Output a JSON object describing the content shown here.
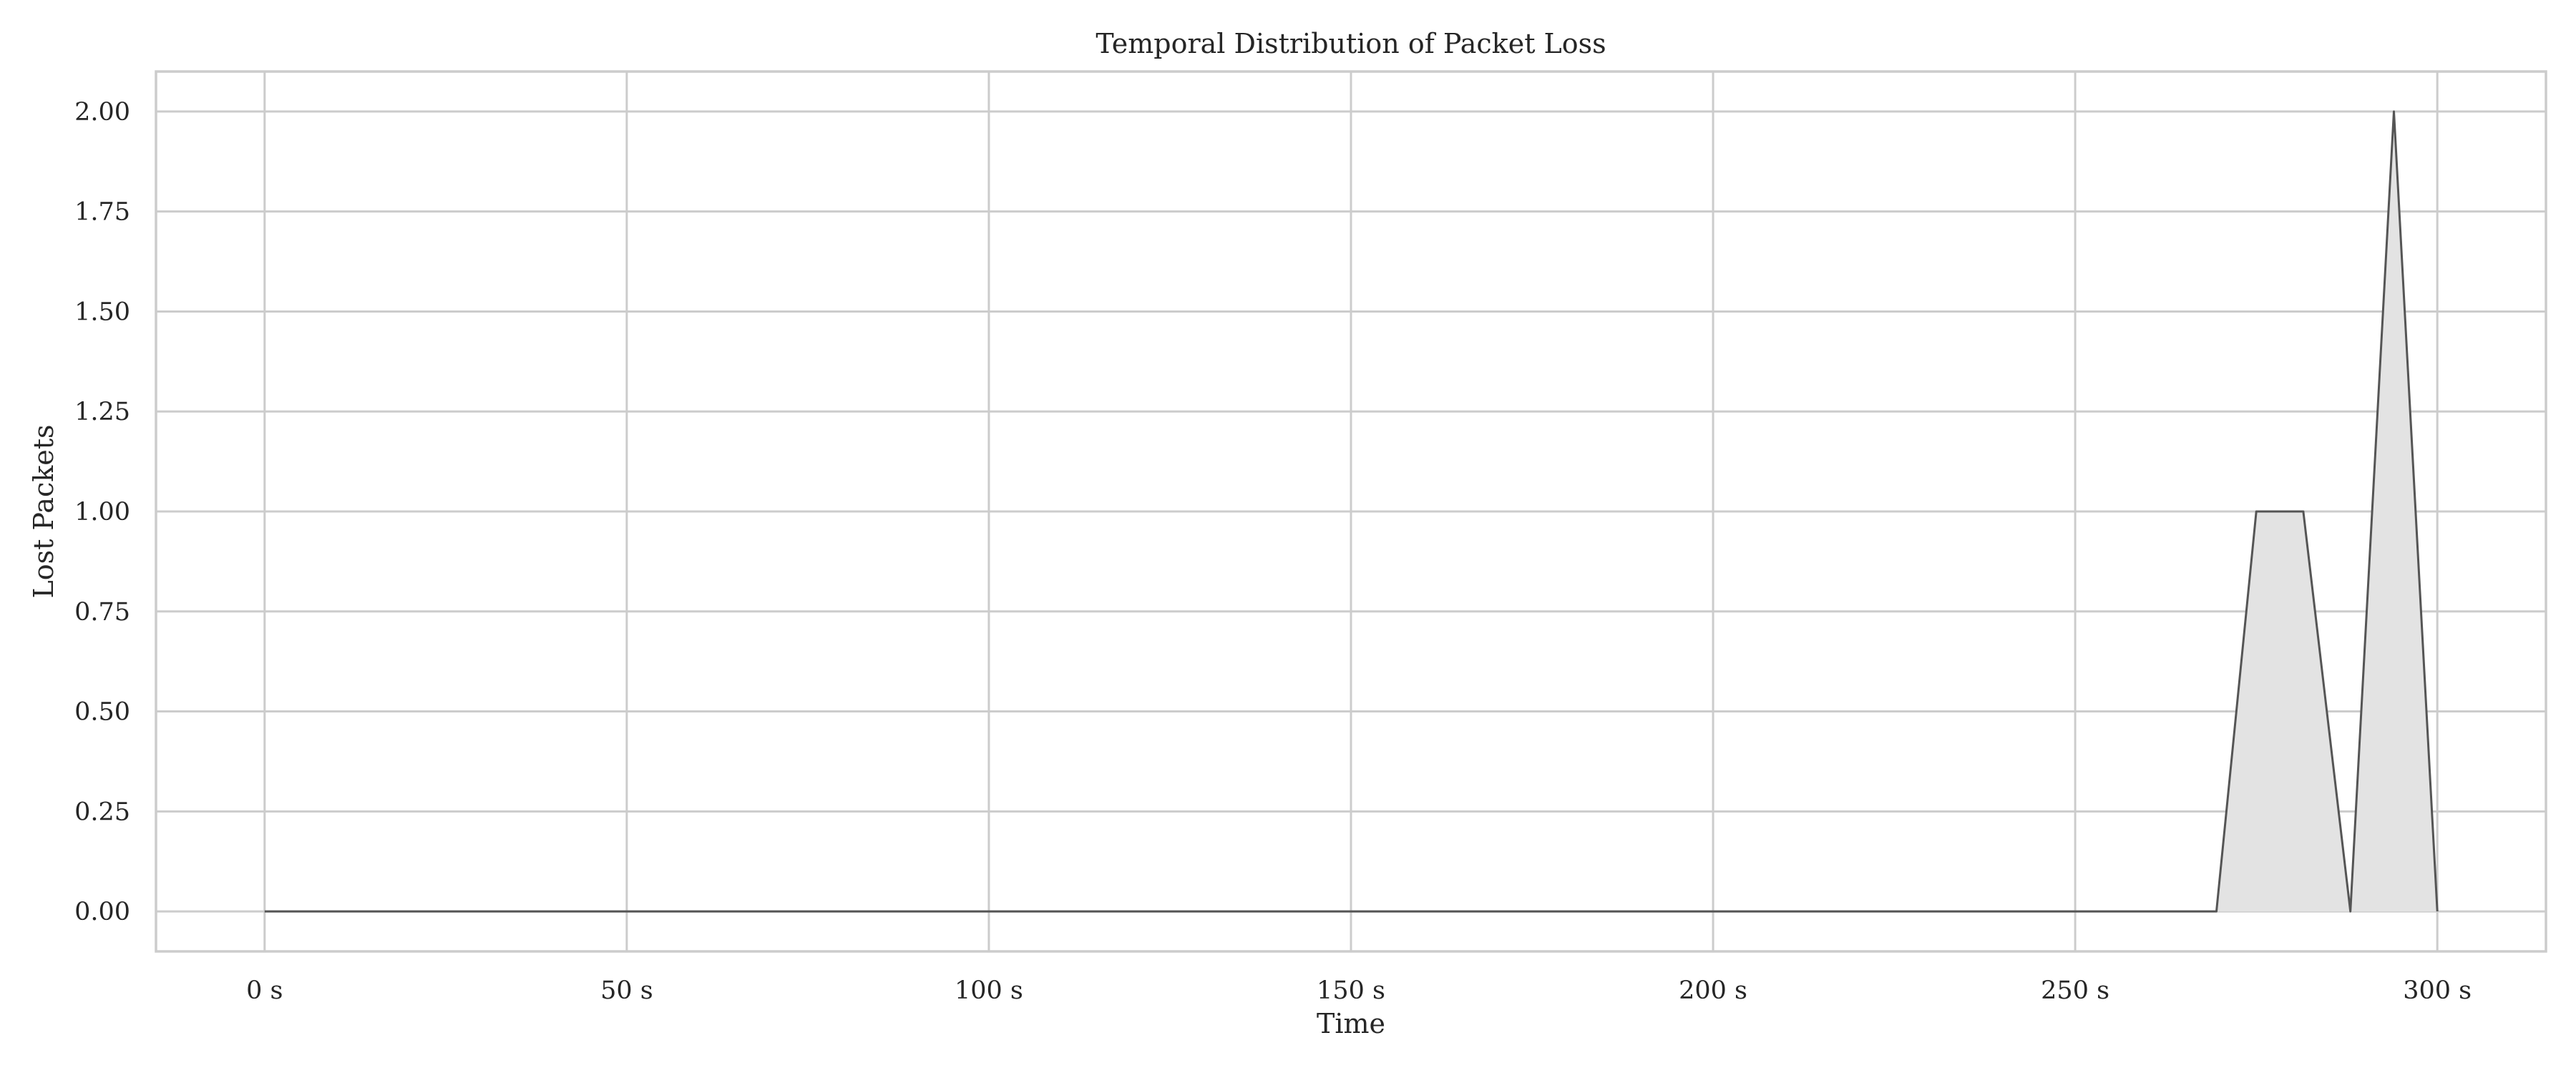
{
  "chart_data": {
    "type": "area",
    "title": "Temporal Distribution of Packet Loss",
    "xlabel": "Time",
    "ylabel": "Lost Packets",
    "xlim": [
      -15,
      315
    ],
    "ylim": [
      -0.1,
      2.1
    ],
    "xticks": [
      0,
      50,
      100,
      150,
      200,
      250,
      300
    ],
    "xtick_labels": [
      "0 s",
      "50 s",
      "100 s",
      "150 s",
      "200 s",
      "250 s",
      "300 s"
    ],
    "yticks": [
      0,
      0.25,
      0.5,
      0.75,
      1.0,
      1.25,
      1.5,
      1.75,
      2.0
    ],
    "ytick_labels": [
      "0.00",
      "0.25",
      "0.50",
      "0.75",
      "1.00",
      "1.25",
      "1.50",
      "1.75",
      "2.00"
    ],
    "grid": true,
    "series": [
      {
        "x": [
          0,
          269.5,
          275,
          281.5,
          288,
          294,
          300
        ],
        "y": [
          0,
          0,
          1,
          1,
          0,
          2,
          0
        ]
      }
    ],
    "colors": {
      "fill": "#e3e3e3",
      "line": "#555555",
      "grid": "#cccccc",
      "text": "#262626"
    }
  }
}
